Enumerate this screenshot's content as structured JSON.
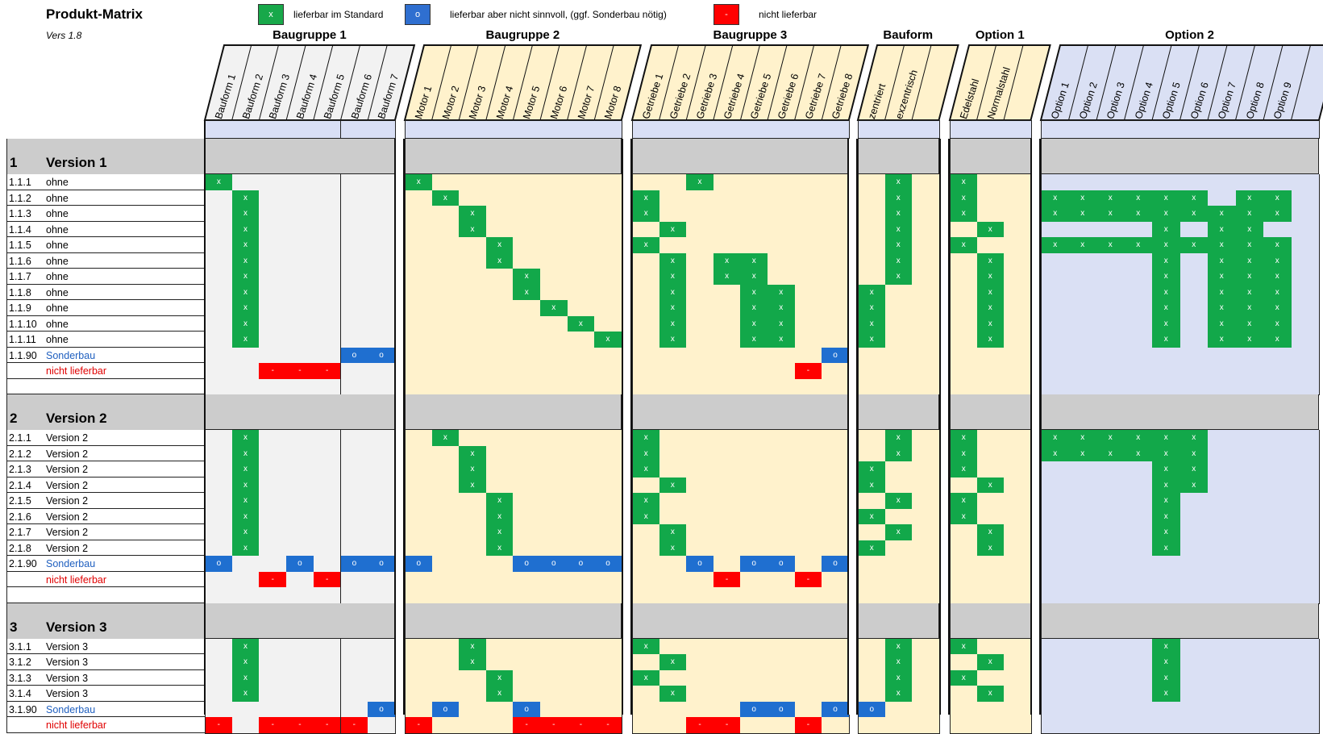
{
  "header": {
    "title": "Produkt-Matrix",
    "version": "Vers 1.8"
  },
  "legend": [
    {
      "symbol": "x",
      "text": "lieferbar im Standard",
      "color": "#18a84a"
    },
    {
      "symbol": "o",
      "text": "lieferbar aber nicht sinnvoll, (ggf. Sonderbau nötig)",
      "color": "#2f6fd0"
    },
    {
      "symbol": "-",
      "text": "nicht lieferbar",
      "color": "#ff0000"
    }
  ],
  "colors": {
    "green": "#12a84a",
    "blue": "#1f6fd0",
    "red": "#ff0000",
    "section_gray": "#cccccc",
    "header_cell": "#d9dff5",
    "group_fills": [
      "#f2f2f2",
      "#fff2cc",
      "#fff2cc",
      "#fff2cc",
      "#fff2cc",
      "#dae0f4"
    ]
  },
  "groups": [
    {
      "title": "Baugruppe 1",
      "columns": [
        "Bauform 1",
        "Bauform 2",
        "Bauform 3",
        "Bauform 4",
        "Bauform 5",
        "Bauform 6",
        "Bauform 7"
      ]
    },
    {
      "title": "Baugruppe 2",
      "columns": [
        "Motor 1",
        "Motor 2",
        "Motor 3",
        "Motor 4",
        "Motor 5",
        "Motor 6",
        "Motor 7",
        "Motor 8"
      ]
    },
    {
      "title": "Baugruppe 3",
      "columns": [
        "Getriebe 1",
        "Getriebe 2",
        "Getriebe 3",
        "Getriebe 4",
        "Getriebe 5",
        "Getriebe 6",
        "Getriebe 7",
        "Getriebe 8"
      ]
    },
    {
      "title": "Bauform",
      "columns": [
        "zentriert",
        "exzentrisch",
        ""
      ]
    },
    {
      "title": "Option 1",
      "columns": [
        "Edelstahl",
        "Normalstahl",
        ""
      ]
    },
    {
      "title": "Option 2",
      "columns": [
        "Option 1",
        "Option 2",
        "Option 3",
        "Option 4",
        "Option 5",
        "Option 6",
        "Option 7",
        "Option 8",
        "Option 9",
        ""
      ]
    }
  ],
  "sections": [
    {
      "number": "1",
      "title": "Version 1",
      "rows": [
        {
          "id": "1.1.1",
          "label": "ohne",
          "style": "",
          "cells": [
            "x......",
            "x.......",
            "..x.....",
            ".x.",
            "x..",
            ".........."
          ]
        },
        {
          "id": "1.1.2",
          "label": "ohne",
          "style": "",
          "cells": [
            ".x.....",
            ".x......",
            "x.......",
            ".x.",
            "x..",
            "xxxxxx.xx."
          ]
        },
        {
          "id": "1.1.3",
          "label": "ohne",
          "style": "",
          "cells": [
            ".x.....",
            "..x.....",
            "x.......",
            ".x.",
            "x..",
            "xxxxxxxxx."
          ]
        },
        {
          "id": "1.1.4",
          "label": "ohne",
          "style": "",
          "cells": [
            ".x.....",
            "..x.....",
            ".x......",
            ".x.",
            ".x.",
            "....x.xx.."
          ]
        },
        {
          "id": "1.1.5",
          "label": "ohne",
          "style": "",
          "cells": [
            ".x.....",
            "...x....",
            "x.......",
            ".x.",
            "x..",
            "xxxxxxxxx."
          ]
        },
        {
          "id": "1.1.6",
          "label": "ohne",
          "style": "",
          "cells": [
            ".x.....",
            "...x....",
            ".x.xx...",
            ".x.",
            ".x.",
            "....x.xxx."
          ]
        },
        {
          "id": "1.1.7",
          "label": "ohne",
          "style": "",
          "cells": [
            ".x.....",
            "....x...",
            ".x.xx...",
            ".x.",
            ".x.",
            "....x.xxx."
          ]
        },
        {
          "id": "1.1.8",
          "label": "ohne",
          "style": "",
          "cells": [
            ".x.....",
            "....x...",
            ".x..xx..",
            "x..",
            ".x.",
            "....x.xxx."
          ]
        },
        {
          "id": "1.1.9",
          "label": "ohne",
          "style": "",
          "cells": [
            ".x.....",
            ".....x..",
            ".x..xx..",
            "x..",
            ".x.",
            "....x.xxx."
          ]
        },
        {
          "id": "1.1.10",
          "label": "ohne",
          "style": "",
          "cells": [
            ".x.....",
            "......x.",
            ".x..xx..",
            "x..",
            ".x.",
            "....x.xxx."
          ]
        },
        {
          "id": "1.1.11",
          "label": "ohne",
          "style": "",
          "cells": [
            ".x.....",
            ".......x",
            ".x..xx..",
            "x..",
            ".x.",
            "....x.xxx."
          ]
        },
        {
          "id": "1.1.90",
          "label": "Sonderbau",
          "style": "blue",
          "cells": [
            ".....oo",
            "........",
            ".......o",
            "...",
            "...",
            ".........."
          ]
        },
        {
          "id": "",
          "label": "nicht lieferbar",
          "style": "red",
          "cells": [
            "..---..",
            "........",
            "......-.",
            "...",
            "...",
            ".........."
          ]
        },
        {
          "id": "",
          "label": "",
          "style": "",
          "cells": [
            ".......",
            "........",
            "........",
            "...",
            "...",
            ".........."
          ]
        }
      ]
    },
    {
      "number": "2",
      "title": "Version 2",
      "rows": [
        {
          "id": "2.1.1",
          "label": "Version 2",
          "style": "",
          "cells": [
            ".x.....",
            ".x......",
            "x.......",
            ".x.",
            "x..",
            "xxxxxx...."
          ]
        },
        {
          "id": "2.1.2",
          "label": "Version 2",
          "style": "",
          "cells": [
            ".x.....",
            "..x.....",
            "x.......",
            ".x.",
            "x..",
            "xxxxxx...."
          ]
        },
        {
          "id": "2.1.3",
          "label": "Version 2",
          "style": "",
          "cells": [
            ".x.....",
            "..x.....",
            "x.......",
            "x..",
            "x..",
            "....xx...."
          ]
        },
        {
          "id": "2.1.4",
          "label": "Version 2",
          "style": "",
          "cells": [
            ".x.....",
            "..x.....",
            ".x......",
            "x..",
            ".x.",
            "....xx...."
          ]
        },
        {
          "id": "2.1.5",
          "label": "Version 2",
          "style": "",
          "cells": [
            ".x.....",
            "...x....",
            "x.......",
            ".x.",
            "x..",
            "....x....."
          ]
        },
        {
          "id": "2.1.6",
          "label": "Version 2",
          "style": "",
          "cells": [
            ".x.....",
            "...x....",
            "x.......",
            "x..",
            "x..",
            "....x....."
          ]
        },
        {
          "id": "2.1.7",
          "label": "Version 2",
          "style": "",
          "cells": [
            ".x.....",
            "...x....",
            ".x......",
            ".x.",
            ".x.",
            "....x....."
          ]
        },
        {
          "id": "2.1.8",
          "label": "Version 2",
          "style": "",
          "cells": [
            ".x.....",
            "...x....",
            ".x......",
            "x..",
            ".x.",
            "....x....."
          ]
        },
        {
          "id": "2.1.90",
          "label": "Sonderbau",
          "style": "blue",
          "cells": [
            "o..o.oo",
            "o...oooo",
            "..o.oo.o",
            "...",
            "...",
            ".........."
          ]
        },
        {
          "id": "",
          "label": "nicht lieferbar",
          "style": "red",
          "cells": [
            "..-.-..",
            "........",
            "...-..-.",
            "...",
            "...",
            ".........."
          ]
        },
        {
          "id": "",
          "label": "",
          "style": "",
          "cells": [
            ".......",
            "........",
            "........",
            "...",
            "...",
            ".........."
          ]
        }
      ]
    },
    {
      "number": "3",
      "title": "Version 3",
      "rows": [
        {
          "id": "3.1.1",
          "label": "Version 3",
          "style": "",
          "cells": [
            ".x.....",
            "..x.....",
            "x.......",
            ".x.",
            "x..",
            "....x....."
          ]
        },
        {
          "id": "3.1.2",
          "label": "Version 3",
          "style": "",
          "cells": [
            ".x.....",
            "..x.....",
            ".x......",
            ".x.",
            ".x.",
            "....x....."
          ]
        },
        {
          "id": "3.1.3",
          "label": "Version 3",
          "style": "",
          "cells": [
            ".x.....",
            "...x....",
            "x.......",
            ".x.",
            "x..",
            "....x....."
          ]
        },
        {
          "id": "3.1.4",
          "label": "Version 3",
          "style": "",
          "cells": [
            ".x.....",
            "...x....",
            ".x......",
            ".x.",
            ".x.",
            "....x....."
          ]
        },
        {
          "id": "3.1.90",
          "label": "Sonderbau",
          "style": "blue",
          "cells": [
            "......o",
            ".o..o...",
            "....oo.o",
            "o..",
            "...",
            ".........."
          ]
        },
        {
          "id": "",
          "label": "nicht lieferbar",
          "style": "red",
          "cells": [
            "-.----.",
            "-...----",
            "..--..-.",
            "...",
            "...",
            ".........."
          ]
        }
      ]
    }
  ]
}
